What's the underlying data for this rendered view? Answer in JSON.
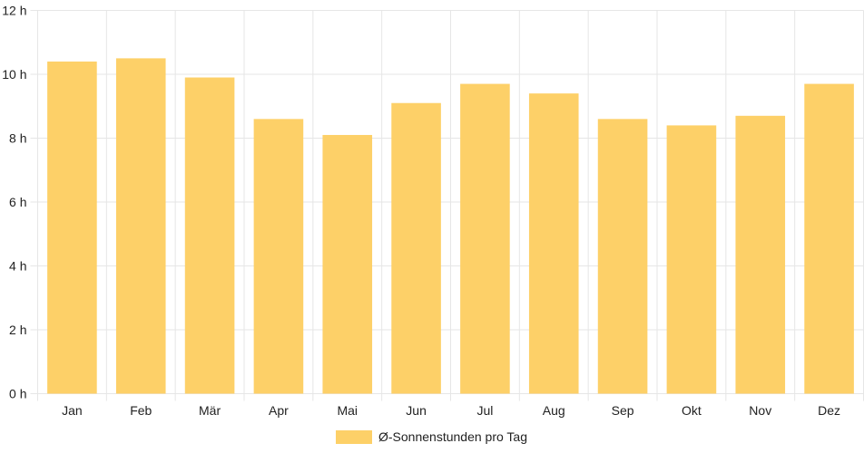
{
  "chart_data": {
    "type": "bar",
    "categories": [
      "Jan",
      "Feb",
      "Mär",
      "Apr",
      "Mai",
      "Jun",
      "Jul",
      "Aug",
      "Sep",
      "Okt",
      "Nov",
      "Dez"
    ],
    "series": [
      {
        "name": "Ø-Sonnenstunden pro Tag",
        "values": [
          10.4,
          10.5,
          9.9,
          8.6,
          8.1,
          9.1,
          9.7,
          9.4,
          8.6,
          8.4,
          8.7,
          9.7
        ],
        "color": "#fdd068"
      }
    ],
    "y_ticks": [
      "0 h",
      "2 h",
      "4 h",
      "6 h",
      "8 h",
      "10 h",
      "12 h"
    ],
    "ylim": [
      0,
      12
    ],
    "grid": true,
    "legend_position": "bottom",
    "colors": {
      "bar": "#fdd068",
      "grid": "#e6e6e6",
      "text": "#222222"
    }
  }
}
